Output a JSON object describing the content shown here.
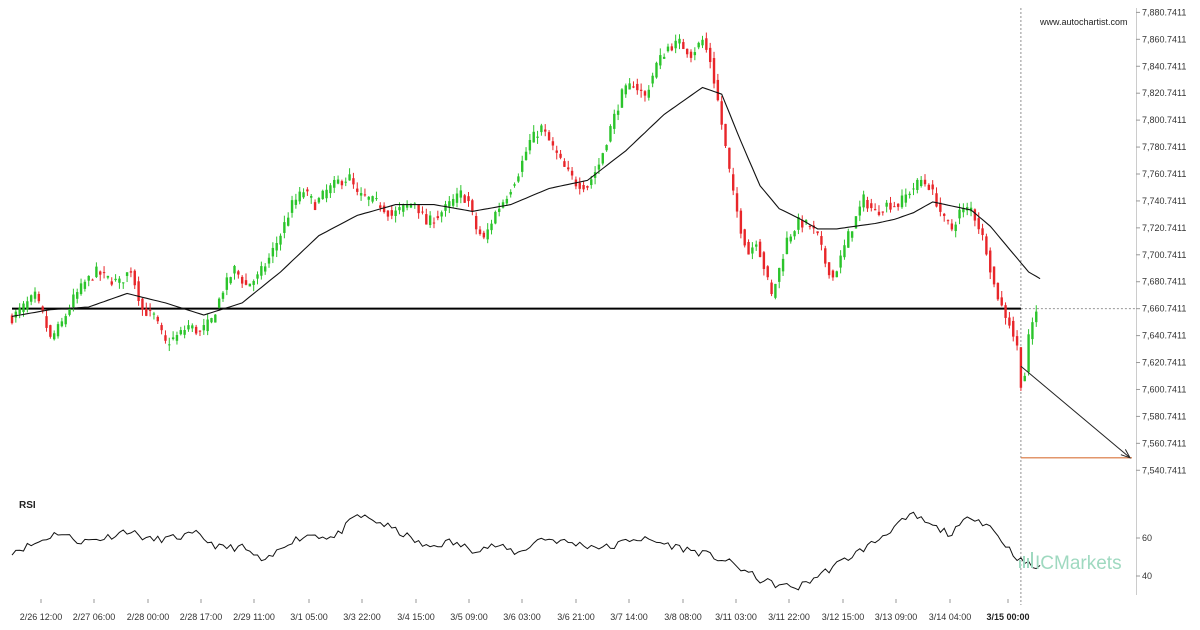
{
  "watermark": "www.autochartist.com",
  "brand": {
    "prefix": "IC",
    "name": "Markets"
  },
  "colors": {
    "bull": "#2bc42b",
    "bear": "#e8262a",
    "ma": "#111111",
    "support": "#000000",
    "target": "#d9733a",
    "rsi": "#111111",
    "brand": "#9fd9c0"
  },
  "chart_data": [
    {
      "type": "candlestick",
      "title": "",
      "y_ticks": [
        "7,880.7411",
        "7,860.7411",
        "7,840.7411",
        "7,820.7411",
        "7,800.7411",
        "7,780.7411",
        "7,760.7411",
        "7,740.7411",
        "7,720.7411",
        "7,700.7411",
        "7,680.7411",
        "7,660.7411",
        "7,640.7411",
        "7,620.7411",
        "7,600.7411",
        "7,580.7411",
        "7,560.7411",
        "7,540.7411"
      ],
      "ylim": [
        7535,
        7884
      ],
      "x_ticks": [
        "2/26 12:00",
        "2/27 06:00",
        "2/28 00:00",
        "2/28 17:00",
        "2/29 11:00",
        "3/1 05:00",
        "3/3 22:00",
        "3/4 15:00",
        "3/5 09:00",
        "3/6 03:00",
        "3/6 21:00",
        "3/7 14:00",
        "3/8 08:00",
        "3/11 03:00",
        "3/11 22:00",
        "3/12 15:00",
        "3/13 09:00",
        "3/14 04:00",
        "3/15 00:00"
      ],
      "x_tick_bold_index": 18,
      "price_keypoints": [
        [
          0,
          7654
        ],
        [
          3,
          7662
        ],
        [
          6,
          7670
        ],
        [
          8,
          7656
        ],
        [
          10,
          7638
        ],
        [
          13,
          7650
        ],
        [
          16,
          7668
        ],
        [
          19,
          7680
        ],
        [
          22,
          7688
        ],
        [
          25,
          7683
        ],
        [
          28,
          7680
        ],
        [
          31,
          7690
        ],
        [
          34,
          7660
        ],
        [
          37,
          7655
        ],
        [
          40,
          7635
        ],
        [
          43,
          7640
        ],
        [
          46,
          7648
        ],
        [
          49,
          7643
        ],
        [
          52,
          7652
        ],
        [
          55,
          7675
        ],
        [
          58,
          7690
        ],
        [
          61,
          7678
        ],
        [
          64,
          7684
        ],
        [
          67,
          7698
        ],
        [
          70,
          7716
        ],
        [
          73,
          7738
        ],
        [
          76,
          7748
        ],
        [
          79,
          7738
        ],
        [
          82,
          7748
        ],
        [
          85,
          7755
        ],
        [
          88,
          7758
        ],
        [
          90,
          7745
        ],
        [
          93,
          7742
        ],
        [
          96,
          7738
        ],
        [
          99,
          7730
        ],
        [
          102,
          7736
        ],
        [
          105,
          7740
        ],
        [
          108,
          7724
        ],
        [
          111,
          7730
        ],
        [
          114,
          7738
        ],
        [
          117,
          7746
        ],
        [
          119,
          7740
        ],
        [
          121,
          7720
        ],
        [
          123,
          7712
        ],
        [
          126,
          7732
        ],
        [
          129,
          7745
        ],
        [
          132,
          7762
        ],
        [
          135,
          7785
        ],
        [
          138,
          7795
        ],
        [
          141,
          7780
        ],
        [
          144,
          7765
        ],
        [
          147,
          7754
        ],
        [
          150,
          7752
        ],
        [
          153,
          7768
        ],
        [
          156,
          7795
        ],
        [
          159,
          7820
        ],
        [
          162,
          7828
        ],
        [
          165,
          7818
        ],
        [
          168,
          7842
        ],
        [
          171,
          7855
        ],
        [
          174,
          7858
        ],
        [
          177,
          7850
        ],
        [
          180,
          7860
        ],
        [
          182,
          7845
        ],
        [
          184,
          7815
        ],
        [
          186,
          7780
        ],
        [
          188,
          7745
        ],
        [
          190,
          7720
        ],
        [
          192,
          7702
        ],
        [
          194,
          7712
        ],
        [
          196,
          7692
        ],
        [
          198,
          7670
        ],
        [
          200,
          7690
        ],
        [
          202,
          7712
        ],
        [
          205,
          7725
        ],
        [
          208,
          7722
        ],
        [
          210,
          7714
        ],
        [
          212,
          7695
        ],
        [
          214,
          7684
        ],
        [
          216,
          7698
        ],
        [
          218,
          7715
        ],
        [
          220,
          7728
        ],
        [
          222,
          7742
        ],
        [
          225,
          7732
        ],
        [
          228,
          7738
        ],
        [
          231,
          7738
        ],
        [
          234,
          7748
        ],
        [
          237,
          7756
        ],
        [
          239,
          7752
        ],
        [
          241,
          7740
        ],
        [
          243,
          7726
        ],
        [
          245,
          7720
        ],
        [
          247,
          7733
        ],
        [
          250,
          7735
        ],
        [
          252,
          7722
        ],
        [
          254,
          7705
        ],
        [
          256,
          7678
        ],
        [
          258,
          7662
        ],
        [
          260,
          7650
        ],
        [
          262,
          7632
        ],
        [
          263,
          7606
        ],
        [
          264,
          7612
        ],
        [
          265,
          7638
        ],
        [
          266,
          7650
        ],
        [
          267,
          7660
        ]
      ],
      "ma_keypoints": [
        [
          0,
          7655
        ],
        [
          10,
          7660
        ],
        [
          20,
          7662
        ],
        [
          30,
          7672
        ],
        [
          40,
          7665
        ],
        [
          50,
          7656
        ],
        [
          60,
          7665
        ],
        [
          70,
          7688
        ],
        [
          80,
          7715
        ],
        [
          90,
          7730
        ],
        [
          100,
          7738
        ],
        [
          110,
          7738
        ],
        [
          120,
          7733
        ],
        [
          130,
          7738
        ],
        [
          140,
          7750
        ],
        [
          150,
          7756
        ],
        [
          160,
          7778
        ],
        [
          170,
          7805
        ],
        [
          180,
          7825
        ],
        [
          185,
          7820
        ],
        [
          190,
          7785
        ],
        [
          195,
          7752
        ],
        [
          200,
          7735
        ],
        [
          205,
          7728
        ],
        [
          210,
          7720
        ],
        [
          215,
          7720
        ],
        [
          220,
          7722
        ],
        [
          225,
          7724
        ],
        [
          230,
          7727
        ],
        [
          235,
          7732
        ],
        [
          240,
          7740
        ],
        [
          250,
          7734
        ],
        [
          255,
          7722
        ],
        [
          260,
          7705
        ],
        [
          265,
          7688
        ],
        [
          268,
          7683
        ]
      ],
      "support_level": 7660.7411,
      "current_level": 7660.7411,
      "forecast": {
        "from": [
          263,
          7618
        ],
        "to": [
          293,
          7550
        ]
      },
      "target_level": 7550,
      "now_index": 263,
      "last_index": 293
    },
    {
      "type": "line",
      "title": "RSI",
      "y_ticks": [
        60,
        40
      ],
      "ylim": [
        30,
        80
      ],
      "rsi_keypoints": [
        [
          0,
          53
        ],
        [
          6,
          57
        ],
        [
          12,
          63
        ],
        [
          18,
          58
        ],
        [
          24,
          60
        ],
        [
          30,
          64
        ],
        [
          36,
          59
        ],
        [
          42,
          60
        ],
        [
          48,
          62
        ],
        [
          54,
          55
        ],
        [
          60,
          55
        ],
        [
          66,
          47
        ],
        [
          72,
          58
        ],
        [
          78,
          62
        ],
        [
          84,
          60
        ],
        [
          90,
          72
        ],
        [
          96,
          68
        ],
        [
          102,
          62
        ],
        [
          108,
          55
        ],
        [
          114,
          58
        ],
        [
          120,
          54
        ],
        [
          126,
          56
        ],
        [
          132,
          52
        ],
        [
          138,
          60
        ],
        [
          144,
          58
        ],
        [
          150,
          56
        ],
        [
          156,
          55
        ],
        [
          162,
          60
        ],
        [
          168,
          58
        ],
        [
          174,
          55
        ],
        [
          180,
          52
        ],
        [
          186,
          48
        ],
        [
          190,
          44
        ],
        [
          195,
          38
        ],
        [
          200,
          35
        ],
        [
          205,
          34
        ],
        [
          210,
          40
        ],
        [
          215,
          46
        ],
        [
          220,
          52
        ],
        [
          225,
          58
        ],
        [
          230,
          66
        ],
        [
          235,
          72
        ],
        [
          240,
          66
        ],
        [
          245,
          62
        ],
        [
          250,
          72
        ],
        [
          255,
          66
        ],
        [
          260,
          54
        ],
        [
          263,
          48
        ],
        [
          266,
          45
        ],
        [
          268,
          44
        ]
      ]
    }
  ]
}
